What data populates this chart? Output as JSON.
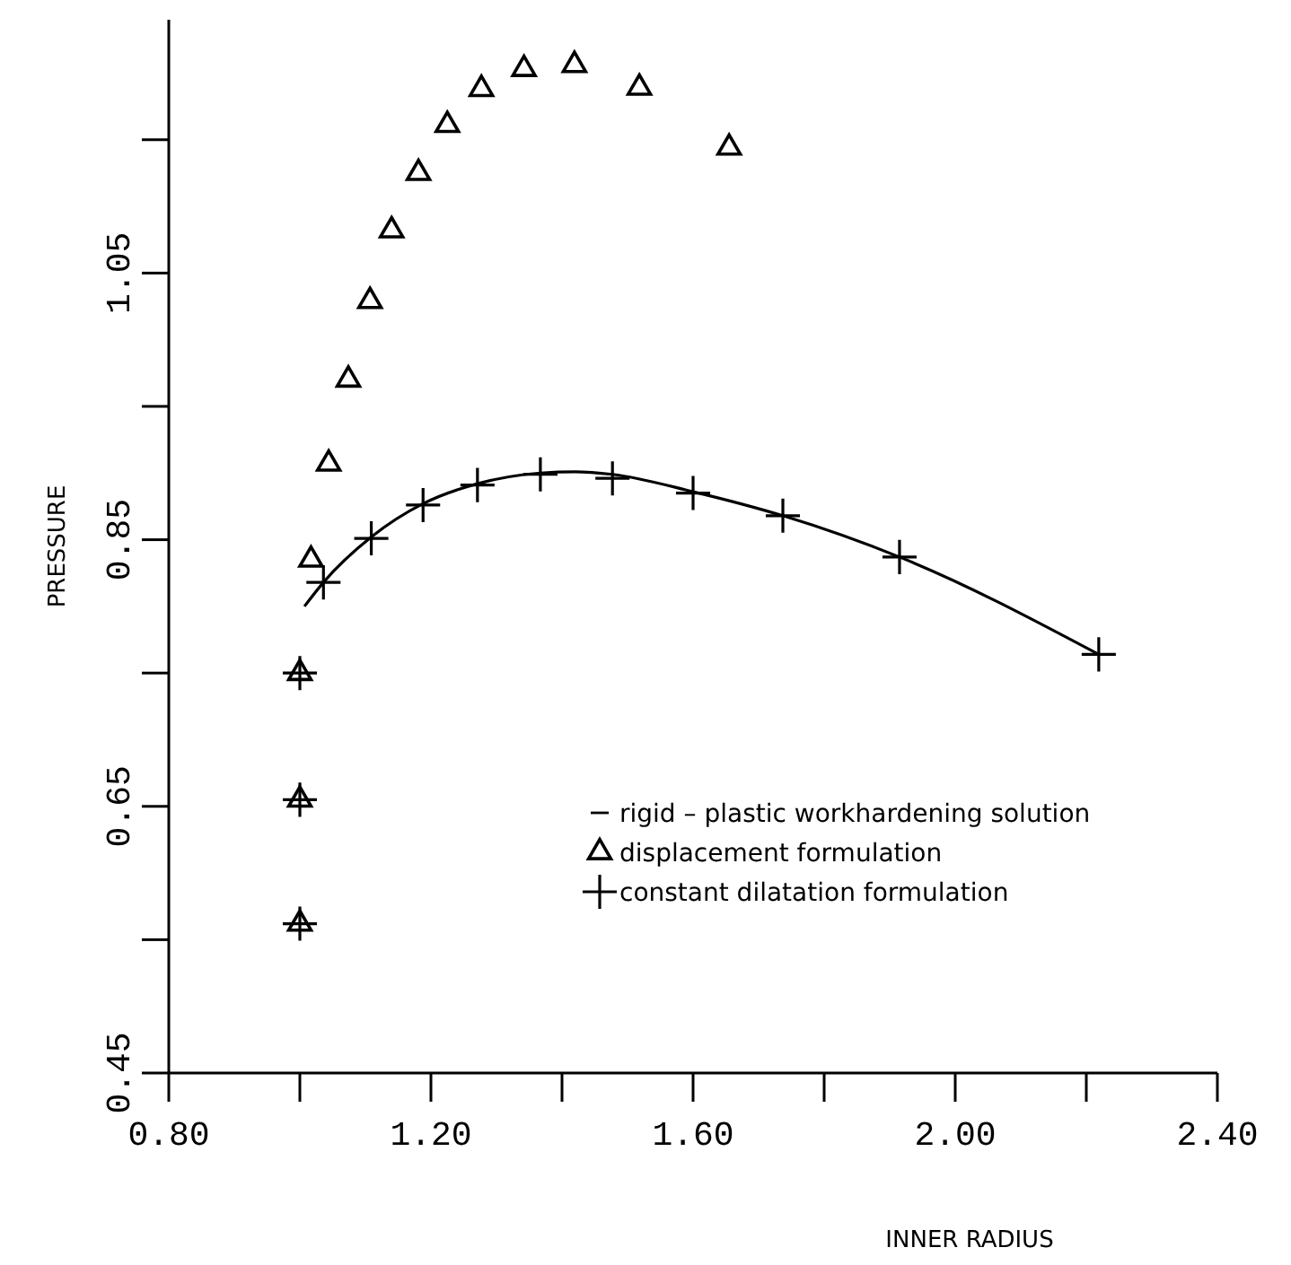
{
  "chart_data": {
    "type": "scatter",
    "xlabel": "INNER RADIUS",
    "ylabel": "PRESSURE",
    "xlim": [
      0.8,
      2.4
    ],
    "ylim": [
      0.45,
      1.24
    ],
    "xticks": [
      {
        "value": 0.8,
        "label": "0.80"
      },
      {
        "value": 1.0,
        "label": null
      },
      {
        "value": 1.2,
        "label": "1.20"
      },
      {
        "value": 1.4,
        "label": null
      },
      {
        "value": 1.6,
        "label": "1.60"
      },
      {
        "value": 1.8,
        "label": null
      },
      {
        "value": 2.0,
        "label": "2.00"
      },
      {
        "value": 2.2,
        "label": null
      },
      {
        "value": 2.4,
        "label": "2.40"
      }
    ],
    "yticks": [
      0.45,
      {
        "value": 0.55,
        "label": null
      },
      0.65,
      {
        "value": 0.75,
        "label": null
      },
      0.85,
      {
        "value": 0.95,
        "label": null
      },
      1.05,
      {
        "value": 1.15,
        "label": null
      }
    ],
    "grid": false,
    "legend": "right",
    "series": [
      {
        "name": "rigid – plastic workhardening solution",
        "type": "line",
        "marker": "none",
        "line_style": "solid",
        "color": "#000000",
        "x": [
          1.007,
          1.036,
          1.109,
          1.188,
          1.271,
          1.367,
          1.42,
          1.477,
          1.6,
          1.737,
          1.915,
          2.219
        ],
        "values": [
          0.8,
          0.818,
          0.852,
          0.877,
          0.892,
          0.9,
          0.901,
          0.899,
          0.886,
          0.868,
          0.837,
          0.764
        ]
      },
      {
        "name": "displacement formulation",
        "marker": "triangle",
        "color": "#000000",
        "x": [
          1.017,
          1.044,
          1.074,
          1.107,
          1.14,
          1.181,
          1.225,
          1.277,
          1.342,
          1.419,
          1.518,
          1.655,
          1.0,
          1.0,
          1.0
        ],
        "values": [
          0.835,
          0.907,
          0.97,
          1.029,
          1.082,
          1.125,
          1.161,
          1.188,
          1.203,
          1.206,
          1.189,
          1.144,
          0.562,
          0.655,
          0.75
        ]
      },
      {
        "name": "constant dilatation formulation",
        "marker": "cross",
        "color": "#000000",
        "x": [
          1.036,
          1.109,
          1.188,
          1.271,
          1.367,
          1.477,
          1.6,
          1.737,
          1.915,
          2.219,
          1.0,
          1.0,
          1.0
        ],
        "values": [
          0.818,
          0.851,
          0.876,
          0.891,
          0.899,
          0.896,
          0.885,
          0.868,
          0.837,
          0.764,
          0.562,
          0.655,
          0.75
        ]
      }
    ]
  }
}
